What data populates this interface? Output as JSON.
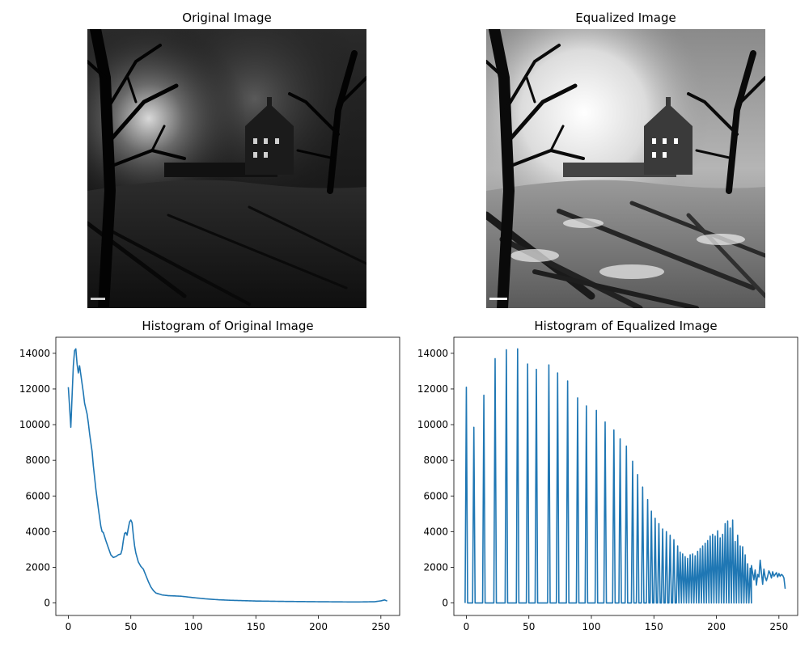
{
  "figure": {
    "panels": [
      {
        "title": "Original Image",
        "kind": "image",
        "tone": "dark"
      },
      {
        "title": "Equalized Image",
        "kind": "image",
        "tone": "bright"
      },
      {
        "title": "Histogram of Original Image",
        "kind": "line"
      },
      {
        "title": "Histogram of Equalized Image",
        "kind": "line"
      }
    ]
  },
  "chart_data": [
    {
      "type": "line",
      "title": "Histogram of Original Image",
      "xlabel": "",
      "ylabel": "",
      "xlim": [
        -10,
        265
      ],
      "ylim": [
        -700,
        14900
      ],
      "xticks": [
        0,
        50,
        100,
        150,
        200,
        250
      ],
      "yticks": [
        0,
        2000,
        4000,
        6000,
        8000,
        10000,
        12000,
        14000
      ],
      "line_color": "#1f77b4",
      "keypoints": [
        [
          0,
          12100
        ],
        [
          1,
          11000
        ],
        [
          2,
          9850
        ],
        [
          3,
          11600
        ],
        [
          4,
          13300
        ],
        [
          5,
          14150
        ],
        [
          6,
          14250
        ],
        [
          7,
          13400
        ],
        [
          8,
          12900
        ],
        [
          9,
          13300
        ],
        [
          10,
          12800
        ],
        [
          11,
          12300
        ],
        [
          12,
          11800
        ],
        [
          13,
          11200
        ],
        [
          14,
          10900
        ],
        [
          15,
          10600
        ],
        [
          16,
          10100
        ],
        [
          17,
          9500
        ],
        [
          18,
          9000
        ],
        [
          19,
          8500
        ],
        [
          20,
          7700
        ],
        [
          22,
          6400
        ],
        [
          24,
          5300
        ],
        [
          26,
          4300
        ],
        [
          27,
          4000
        ],
        [
          28,
          3950
        ],
        [
          30,
          3500
        ],
        [
          32,
          3100
        ],
        [
          34,
          2700
        ],
        [
          36,
          2550
        ],
        [
          38,
          2600
        ],
        [
          40,
          2700
        ],
        [
          42,
          2750
        ],
        [
          43,
          3000
        ],
        [
          44,
          3500
        ],
        [
          45,
          3900
        ],
        [
          46,
          3950
        ],
        [
          47,
          3800
        ],
        [
          48,
          4200
        ],
        [
          49,
          4550
        ],
        [
          50,
          4650
        ],
        [
          51,
          4500
        ],
        [
          52,
          3800
        ],
        [
          53,
          3200
        ],
        [
          54,
          2800
        ],
        [
          56,
          2300
        ],
        [
          58,
          2050
        ],
        [
          60,
          1900
        ],
        [
          62,
          1550
        ],
        [
          64,
          1200
        ],
        [
          66,
          900
        ],
        [
          68,
          700
        ],
        [
          70,
          560
        ],
        [
          75,
          450
        ],
        [
          80,
          410
        ],
        [
          90,
          380
        ],
        [
          100,
          300
        ],
        [
          110,
          230
        ],
        [
          120,
          180
        ],
        [
          130,
          150
        ],
        [
          150,
          110
        ],
        [
          170,
          90
        ],
        [
          200,
          70
        ],
        [
          230,
          55
        ],
        [
          245,
          70
        ],
        [
          250,
          120
        ],
        [
          253,
          170
        ],
        [
          255,
          110
        ]
      ]
    },
    {
      "type": "line",
      "title": "Histogram of Equalized Image",
      "xlabel": "",
      "ylabel": "",
      "xlim": [
        -10,
        265
      ],
      "ylim": [
        -700,
        14900
      ],
      "xticks": [
        0,
        50,
        100,
        150,
        200,
        250
      ],
      "yticks": [
        0,
        2000,
        4000,
        6000,
        8000,
        10000,
        12000,
        14000
      ],
      "line_color": "#1f77b4",
      "spikes": [
        [
          0,
          12100
        ],
        [
          6,
          9850
        ],
        [
          14,
          11650
        ],
        [
          23,
          13700
        ],
        [
          32,
          14200
        ],
        [
          41,
          14250
        ],
        [
          49,
          13400
        ],
        [
          56,
          13100
        ],
        [
          66,
          13350
        ],
        [
          73,
          12900
        ],
        [
          81,
          12450
        ],
        [
          89,
          11500
        ],
        [
          96,
          11050
        ],
        [
          104,
          10800
        ],
        [
          111,
          10150
        ],
        [
          118,
          9700
        ],
        [
          123,
          9200
        ],
        [
          128,
          8800
        ],
        [
          133,
          7950
        ],
        [
          137,
          7200
        ],
        [
          141,
          6500
        ],
        [
          145,
          5800
        ],
        [
          148,
          5150
        ],
        [
          151,
          4750
        ],
        [
          154,
          4450
        ],
        [
          157,
          4150
        ],
        [
          160,
          4000
        ],
        [
          163,
          3800
        ],
        [
          166,
          3550
        ],
        [
          169,
          3200
        ],
        [
          171,
          2850
        ],
        [
          173,
          2750
        ],
        [
          175,
          2600
        ],
        [
          177,
          2500
        ],
        [
          179,
          2700
        ],
        [
          181,
          2750
        ],
        [
          183,
          2650
        ],
        [
          185,
          2900
        ],
        [
          187,
          3050
        ],
        [
          189,
          3200
        ],
        [
          191,
          3350
        ],
        [
          193,
          3500
        ],
        [
          195,
          3750
        ],
        [
          197,
          3850
        ],
        [
          199,
          3750
        ],
        [
          201,
          4050
        ],
        [
          203,
          3650
        ],
        [
          205,
          3850
        ],
        [
          207,
          4450
        ],
        [
          209,
          4600
        ],
        [
          211,
          4200
        ],
        [
          213,
          4650
        ],
        [
          215,
          3450
        ],
        [
          217,
          3800
        ],
        [
          219,
          3200
        ],
        [
          221,
          3150
        ],
        [
          223,
          2700
        ],
        [
          225,
          2200
        ],
        [
          227,
          1950
        ]
      ],
      "tail": [
        [
          228,
          2100
        ],
        [
          229,
          1700
        ],
        [
          230,
          1300
        ],
        [
          231,
          1850
        ],
        [
          232,
          1000
        ],
        [
          233,
          1600
        ],
        [
          234,
          1450
        ],
        [
          235,
          2400
        ],
        [
          236,
          1700
        ],
        [
          237,
          1050
        ],
        [
          238,
          1900
        ],
        [
          239,
          1450
        ],
        [
          240,
          1250
        ],
        [
          241,
          1500
        ],
        [
          242,
          1800
        ],
        [
          243,
          1650
        ],
        [
          244,
          1400
        ],
        [
          245,
          1750
        ],
        [
          246,
          1500
        ],
        [
          247,
          1600
        ],
        [
          248,
          1700
        ],
        [
          249,
          1450
        ],
        [
          250,
          1650
        ],
        [
          251,
          1500
        ],
        [
          252,
          1600
        ],
        [
          253,
          1550
        ],
        [
          254,
          1400
        ],
        [
          255,
          800
        ]
      ]
    }
  ]
}
